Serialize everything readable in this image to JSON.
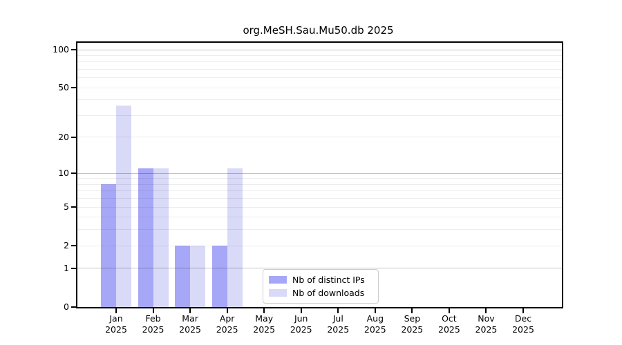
{
  "chart_data": {
    "type": "bar",
    "title": "org.MeSH.Sau.Mu50.db 2025",
    "months": [
      "Jan",
      "Feb",
      "Mar",
      "Apr",
      "May",
      "Jun",
      "Jul",
      "Aug",
      "Sep",
      "Oct",
      "Nov",
      "Dec"
    ],
    "year": "2025",
    "categories": [
      "Jan 2025",
      "Feb 2025",
      "Mar 2025",
      "Apr 2025",
      "May 2025",
      "Jun 2025",
      "Jul 2025",
      "Aug 2025",
      "Sep 2025",
      "Oct 2025",
      "Nov 2025",
      "Dec 2025"
    ],
    "series": [
      {
        "name": "Nb of distinct IPs",
        "color": "#a7a7f7",
        "values": [
          8,
          11,
          2,
          2,
          0,
          0,
          0,
          0,
          0,
          0,
          0,
          0
        ]
      },
      {
        "name": "Nb of downloads",
        "color": "#d9d9f8",
        "values": [
          36,
          11,
          2,
          11,
          0,
          0,
          0,
          0,
          0,
          0,
          0,
          0
        ]
      }
    ],
    "xlabel": "",
    "ylabel": "",
    "y_ticks": [
      0,
      1,
      2,
      5,
      10,
      20,
      50,
      100
    ],
    "y_scale": "log1p",
    "ylim": [
      0,
      113
    ],
    "grid": {
      "major_lines": [
        1,
        10,
        100
      ],
      "minor_lines": [
        2,
        3,
        4,
        5,
        6,
        7,
        8,
        9,
        20,
        30,
        40,
        50,
        60,
        70,
        80,
        90
      ]
    },
    "legend": {
      "position": "inside-bottom-center",
      "entries": [
        "Nb of distinct IPs",
        "Nb of downloads"
      ]
    },
    "colors": {
      "distinct_ips": "#a7a7f7",
      "downloads": "#d9d9f8",
      "axis": "#000000",
      "grid_major": "#c4c4c4",
      "grid_minor": "#ececec",
      "background": "#ffffff"
    }
  }
}
